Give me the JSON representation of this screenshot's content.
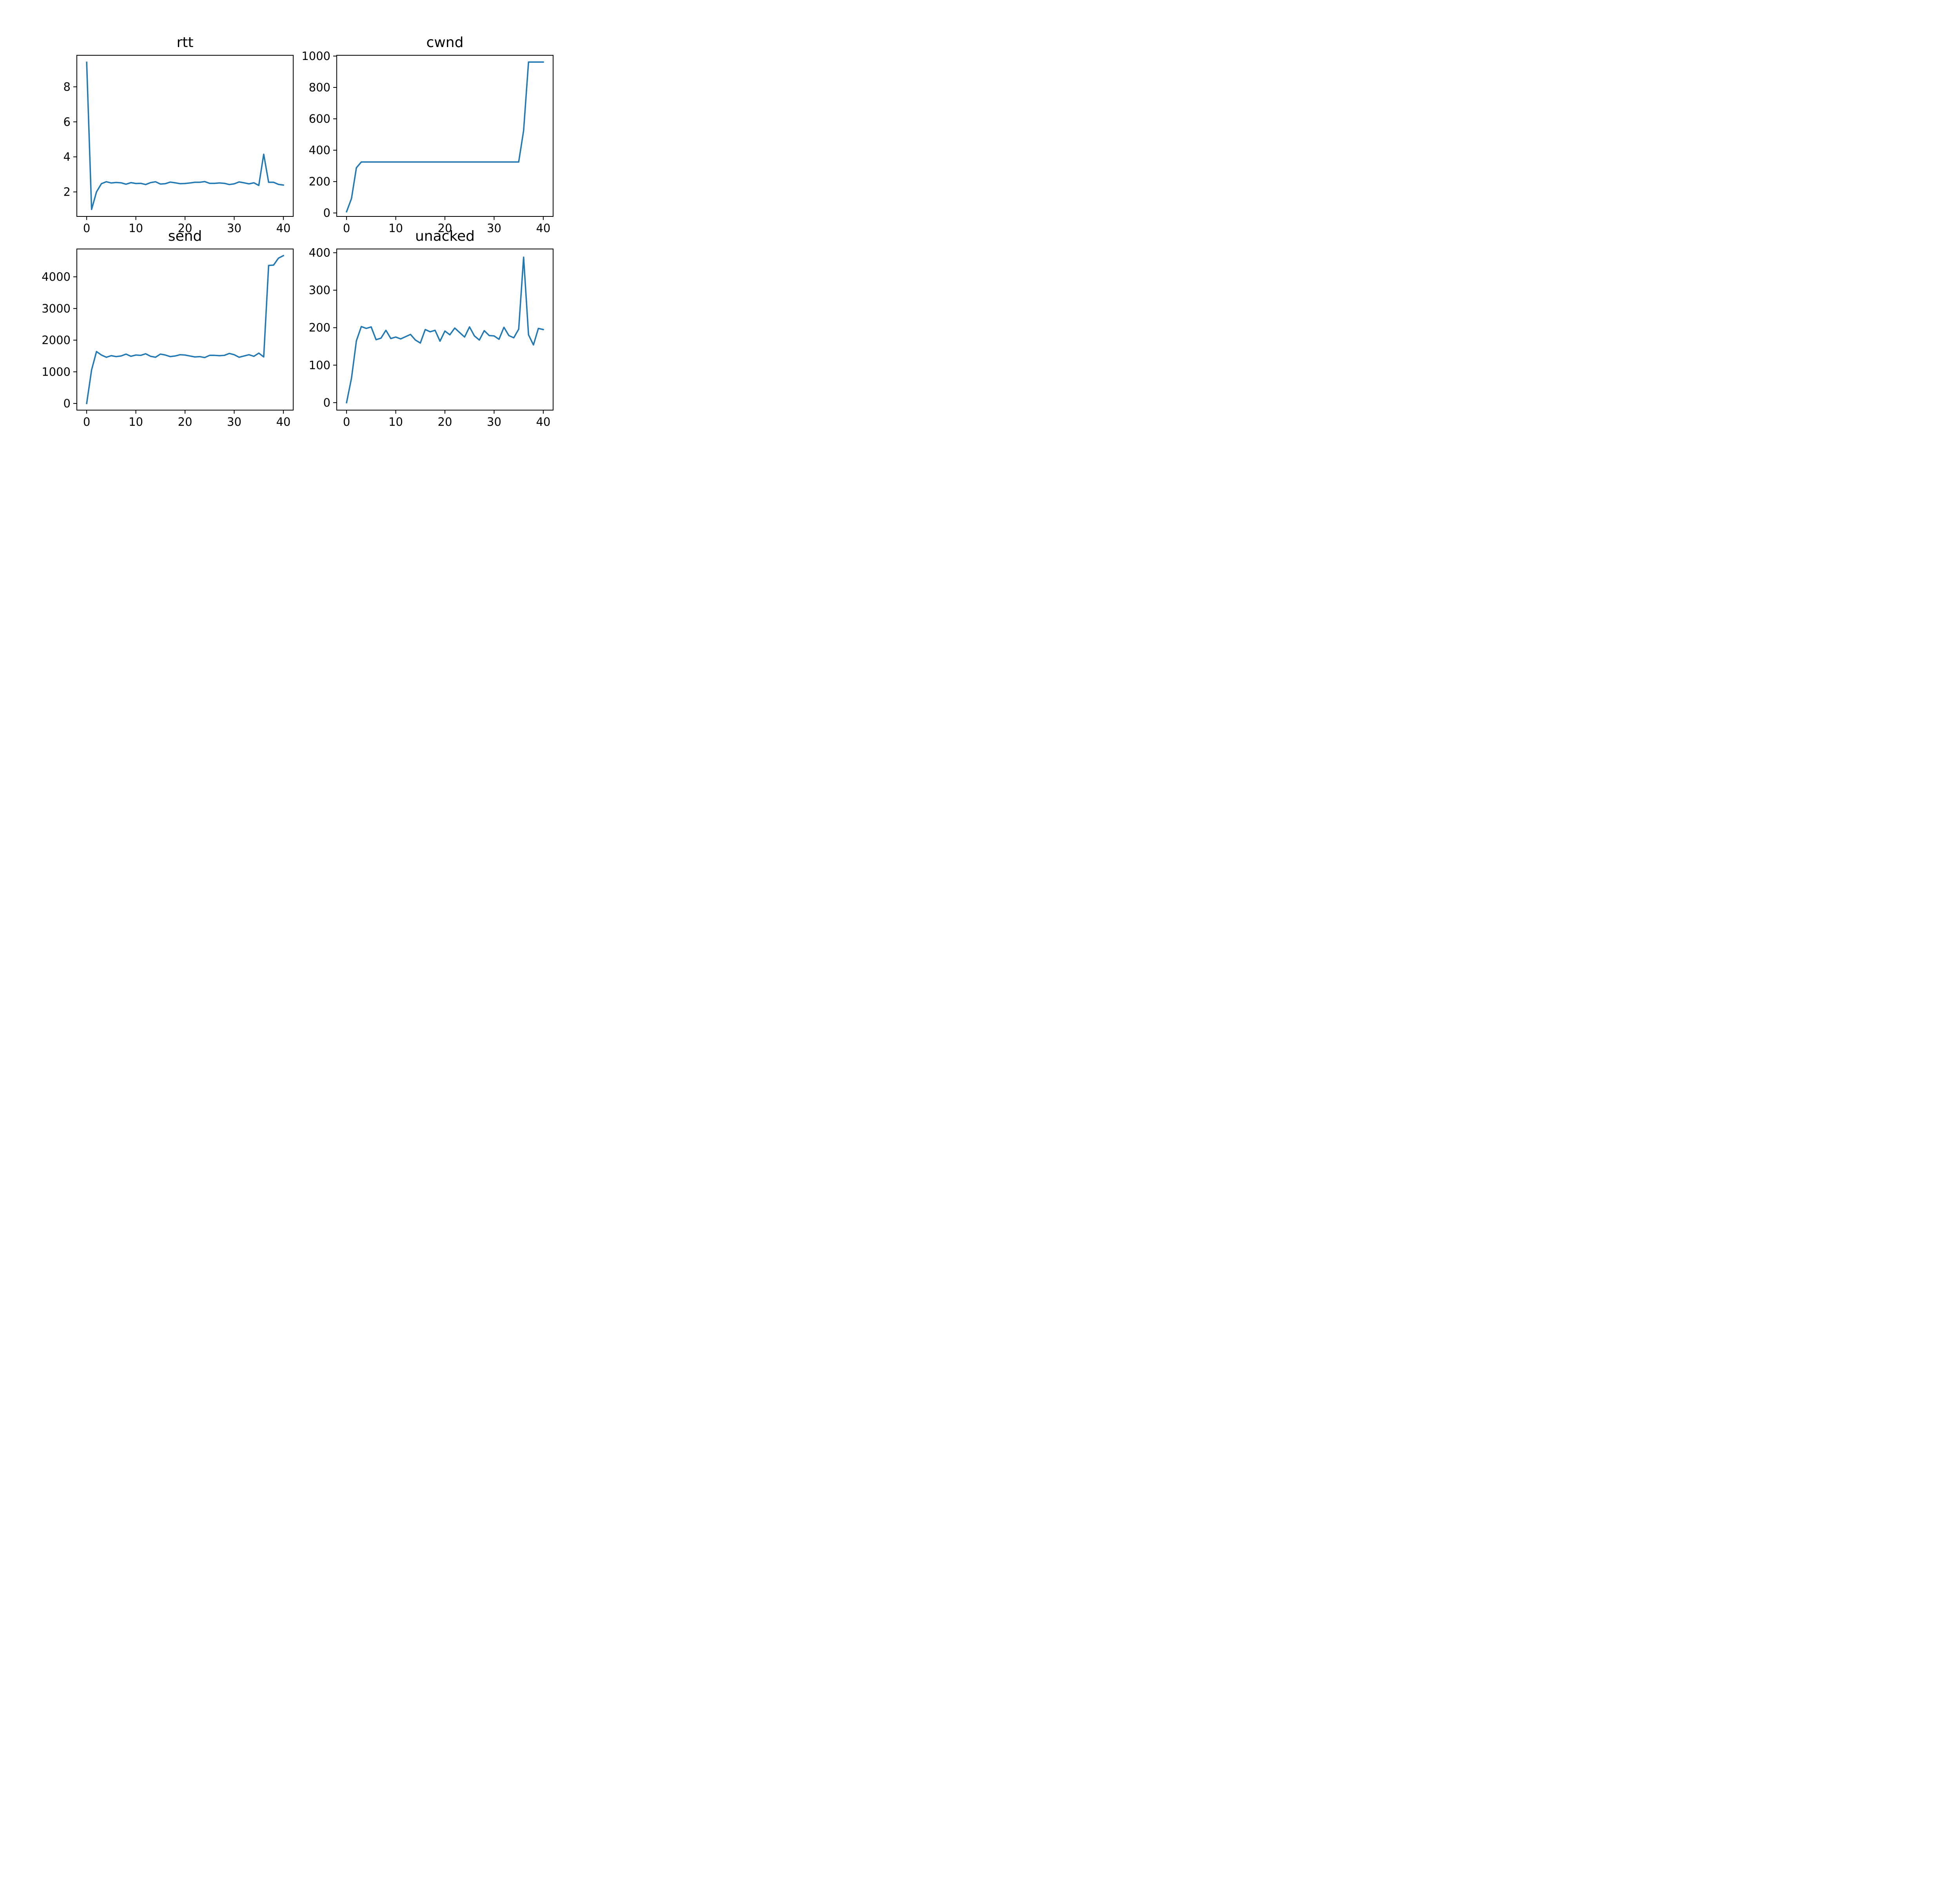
{
  "colors": {
    "line": "#1f77b4"
  },
  "chart_data": [
    {
      "type": "line",
      "title": "rtt",
      "xlim": [
        -2,
        42
      ],
      "ylim": [
        0.6,
        9.8
      ],
      "xticks": [
        0,
        10,
        20,
        30,
        40
      ],
      "yticks": [
        2,
        4,
        6,
        8
      ],
      "grid": false,
      "series": [
        {
          "x": [
            0,
            1,
            2,
            3,
            4,
            5,
            6,
            7,
            8,
            9,
            10,
            11,
            12,
            13,
            14,
            15,
            16,
            17,
            18,
            19,
            20,
            21,
            22,
            23,
            24,
            25,
            26,
            27,
            28,
            29,
            30,
            31,
            32,
            33,
            34,
            35,
            36,
            37,
            38,
            39,
            40
          ],
          "values": [
            9.4,
            1.0,
            2.0,
            2.47,
            2.58,
            2.51,
            2.54,
            2.52,
            2.44,
            2.53,
            2.48,
            2.49,
            2.42,
            2.53,
            2.58,
            2.45,
            2.47,
            2.56,
            2.52,
            2.47,
            2.48,
            2.51,
            2.55,
            2.55,
            2.59,
            2.49,
            2.49,
            2.51,
            2.49,
            2.42,
            2.46,
            2.57,
            2.52,
            2.46,
            2.52,
            2.37,
            4.15,
            2.55,
            2.55,
            2.43,
            2.39
          ]
        }
      ]
    },
    {
      "type": "line",
      "title": "cwnd",
      "xlim": [
        -2,
        42
      ],
      "ylim": [
        -22,
        1005
      ],
      "xticks": [
        0,
        10,
        20,
        30,
        40
      ],
      "yticks": [
        0,
        200,
        400,
        600,
        800,
        1000
      ],
      "grid": false,
      "series": [
        {
          "x": [
            0,
            1,
            2,
            3,
            4,
            5,
            6,
            7,
            8,
            9,
            10,
            11,
            12,
            13,
            14,
            15,
            16,
            17,
            18,
            19,
            20,
            21,
            22,
            23,
            24,
            25,
            26,
            27,
            28,
            29,
            30,
            31,
            32,
            33,
            34,
            35,
            36,
            37,
            38,
            39,
            40
          ],
          "values": [
            8,
            92,
            288,
            325,
            325,
            325,
            325,
            325,
            325,
            325,
            325,
            325,
            325,
            325,
            325,
            325,
            325,
            325,
            325,
            325,
            325,
            325,
            325,
            325,
            325,
            325,
            325,
            325,
            325,
            325,
            325,
            325,
            325,
            325,
            325,
            325,
            525,
            962,
            962,
            962,
            962
          ]
        }
      ]
    },
    {
      "type": "line",
      "title": "send",
      "xlim": [
        -2,
        42
      ],
      "ylim": [
        -210,
        4880
      ],
      "xticks": [
        0,
        10,
        20,
        30,
        40
      ],
      "yticks": [
        0,
        1000,
        2000,
        3000,
        4000
      ],
      "grid": false,
      "series": [
        {
          "x": [
            0,
            1,
            2,
            3,
            4,
            5,
            6,
            7,
            8,
            9,
            10,
            11,
            12,
            13,
            14,
            15,
            16,
            17,
            18,
            19,
            20,
            21,
            22,
            23,
            24,
            25,
            26,
            27,
            28,
            29,
            30,
            31,
            32,
            33,
            34,
            35,
            36,
            37,
            38,
            39,
            40
          ],
          "values": [
            0,
            1060,
            1640,
            1530,
            1460,
            1510,
            1480,
            1500,
            1560,
            1490,
            1530,
            1520,
            1570,
            1490,
            1460,
            1560,
            1530,
            1480,
            1500,
            1540,
            1530,
            1500,
            1470,
            1480,
            1450,
            1520,
            1520,
            1510,
            1520,
            1580,
            1540,
            1460,
            1500,
            1540,
            1490,
            1590,
            1470,
            4360,
            4370,
            4590,
            4670
          ]
        }
      ]
    },
    {
      "type": "line",
      "title": "unacked",
      "xlim": [
        -2,
        42
      ],
      "ylim": [
        -20,
        410
      ],
      "xticks": [
        0,
        10,
        20,
        30,
        40
      ],
      "yticks": [
        0,
        100,
        200,
        300,
        400
      ],
      "grid": false,
      "series": [
        {
          "x": [
            0,
            1,
            2,
            3,
            4,
            5,
            6,
            7,
            8,
            9,
            10,
            11,
            12,
            13,
            14,
            15,
            16,
            17,
            18,
            19,
            20,
            21,
            22,
            23,
            24,
            25,
            26,
            27,
            28,
            29,
            30,
            31,
            32,
            33,
            34,
            35,
            36,
            37,
            38,
            39,
            40
          ],
          "values": [
            0,
            65,
            165,
            203,
            198,
            202,
            168,
            172,
            193,
            171,
            175,
            170,
            176,
            182,
            167,
            159,
            195,
            189,
            193,
            164,
            191,
            181,
            199,
            187,
            175,
            202,
            178,
            167,
            192,
            179,
            178,
            169,
            201,
            179,
            173,
            196,
            388,
            181,
            154,
            198,
            195
          ]
        }
      ]
    }
  ]
}
